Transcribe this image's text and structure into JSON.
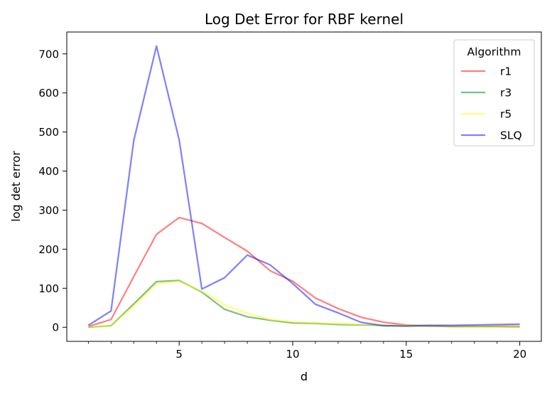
{
  "chart_data": {
    "type": "line",
    "title": "Log Det Error for RBF kernel",
    "xlabel": "d",
    "ylabel": "log det error",
    "xlim": [
      0.05,
      20.95
    ],
    "ylim": [
      -36,
      756
    ],
    "xticks_major": [
      5,
      10,
      15,
      20
    ],
    "xticks_minor": [
      1,
      2,
      3,
      4,
      6,
      7,
      8,
      9,
      11,
      12,
      13,
      14,
      16,
      17,
      18,
      19
    ],
    "yticks": [
      0,
      100,
      200,
      300,
      400,
      500,
      600,
      700
    ],
    "grid": false,
    "legend": {
      "title": "Algorithm",
      "placement": "top-right"
    },
    "x": [
      1,
      2,
      3,
      4,
      5,
      6,
      7,
      8,
      9,
      10,
      11,
      12,
      13,
      14,
      15,
      16,
      17,
      18,
      19,
      20
    ],
    "series": [
      {
        "name": "r1",
        "color": "#ff0000",
        "values": [
          2,
          20,
          130,
          238,
          281,
          266,
          230,
          195,
          145,
          118,
          75,
          48,
          26,
          13,
          6,
          4,
          3,
          3,
          3,
          3
        ]
      },
      {
        "name": "r3",
        "color": "#008000",
        "values": [
          0,
          4,
          60,
          117,
          120,
          90,
          46,
          27,
          18,
          11,
          10,
          7,
          6,
          5,
          4,
          3,
          2,
          2,
          2,
          1
        ]
      },
      {
        "name": "r5",
        "color": "#ffff00",
        "values": [
          1,
          3,
          55,
          111,
          118,
          92,
          58,
          36,
          20,
          14,
          11,
          9,
          7,
          6,
          5,
          4,
          3,
          3,
          3,
          2
        ]
      },
      {
        "name": "SLQ",
        "color": "#0000ff",
        "values": [
          5,
          42,
          478,
          720,
          480,
          98,
          127,
          185,
          160,
          112,
          59,
          37,
          13,
          4,
          3,
          5,
          5,
          6,
          7,
          8
        ]
      }
    ]
  }
}
